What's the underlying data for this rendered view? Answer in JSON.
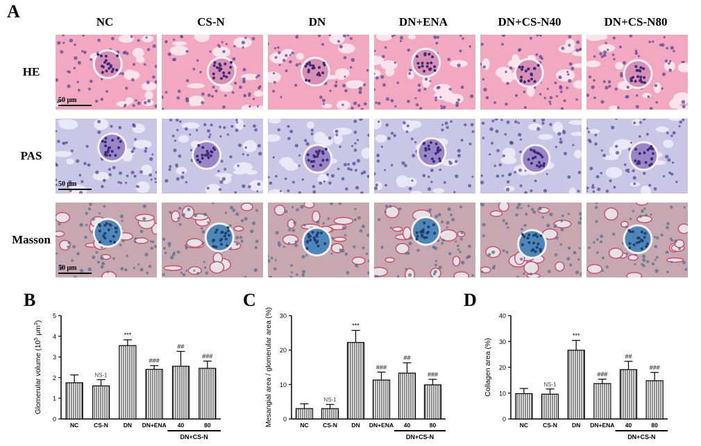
{
  "panels": {
    "A": "A",
    "B": "B",
    "C": "C",
    "D": "D"
  },
  "histology": {
    "columns": [
      "NC",
      "CS-N",
      "DN",
      "DN+ENA",
      "DN+CS-N40",
      "DN+CS-N80"
    ],
    "rows": [
      "HE",
      "PAS",
      "Masson"
    ],
    "scale_bar": "50 μm",
    "stain_colors": {
      "HE": "#f2a8c0",
      "PAS": "#c9c6e6",
      "Masson": "#c8a8b0"
    }
  },
  "chart_data": [
    {
      "type": "bar",
      "panel": "B",
      "categories": [
        "NC",
        "CS-N",
        "DN",
        "DN+ENA",
        "40",
        "80"
      ],
      "group_label": "DN+CS-N",
      "values": [
        1.75,
        1.6,
        3.55,
        2.4,
        2.55,
        2.45
      ],
      "errors": [
        0.38,
        0.3,
        0.28,
        0.18,
        0.72,
        0.35
      ],
      "annotations": [
        "",
        "NS-1",
        "***",
        "###",
        "##",
        "###"
      ],
      "ylabel": "Glomerular volume (10^5 μm^3)",
      "ylabel_parts": {
        "base": "Glomerular volume (10",
        "sup1": "5",
        "mid": " μm",
        "sup2": "3",
        "end": ")"
      },
      "ylim": [
        0,
        5
      ],
      "yticks": [
        "0",
        "1",
        "2",
        "3",
        "4",
        "5"
      ],
      "pattern": "vertical-hatch"
    },
    {
      "type": "bar",
      "panel": "C",
      "categories": [
        "NC",
        "CS-N",
        "DN",
        "DN+ENA",
        "40",
        "80"
      ],
      "group_label": "DN+CS-N",
      "values": [
        3.0,
        3.0,
        22.2,
        11.3,
        13.3,
        9.9
      ],
      "errors": [
        1.4,
        1.2,
        3.5,
        2.3,
        3.0,
        1.6
      ],
      "annotations": [
        "",
        "NS-1",
        "***",
        "###",
        "##",
        "###"
      ],
      "ylabel": "Mesangial area / glomerular area (%)",
      "ylim": [
        0,
        30
      ],
      "yticks": [
        "0",
        "10",
        "20",
        "30"
      ],
      "pattern": "vertical-hatch"
    },
    {
      "type": "bar",
      "panel": "D",
      "categories": [
        "NC",
        "CS-N",
        "DN",
        "DN+ENA",
        "40",
        "80"
      ],
      "group_label": "DN+CS-N",
      "values": [
        9.8,
        9.6,
        26.6,
        13.7,
        19.1,
        14.8
      ],
      "errors": [
        2.0,
        2.0,
        3.8,
        1.7,
        3.2,
        3.2
      ],
      "annotations": [
        "",
        "NS-1",
        "***",
        "###",
        "##",
        "###"
      ],
      "ylabel": "Collagen area (%)",
      "ylim": [
        0,
        40
      ],
      "yticks": [
        "0",
        "10",
        "20",
        "30",
        "40"
      ],
      "pattern": "vertical-hatch"
    }
  ]
}
